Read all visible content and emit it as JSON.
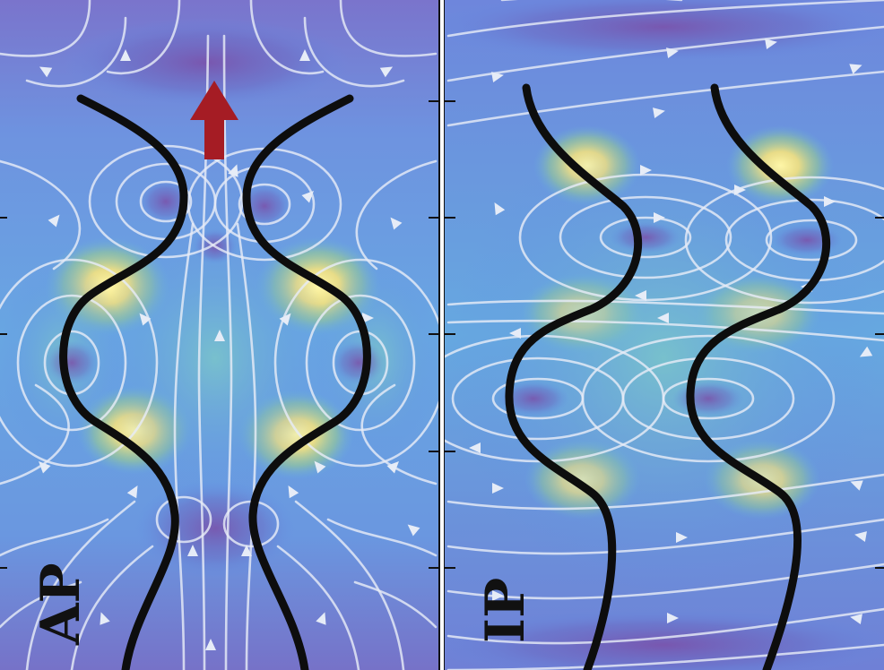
{
  "panels": [
    {
      "id": "left",
      "label": "AP",
      "arrow_direction": "up"
    },
    {
      "id": "right",
      "label": "IP"
    }
  ],
  "colors": {
    "background_blue": "#5f8ee6",
    "field_deep": "#6e63b8",
    "field_mid": "#68b8d8",
    "field_green": "#9fd18a",
    "field_hot": "#ffe88a",
    "streamline": "#e6ecf7",
    "filament": "#0d0d0d",
    "arrow": "#a51c24",
    "divider": "#111111"
  },
  "icons": {
    "flow_arrow": "arrow-up-icon"
  }
}
